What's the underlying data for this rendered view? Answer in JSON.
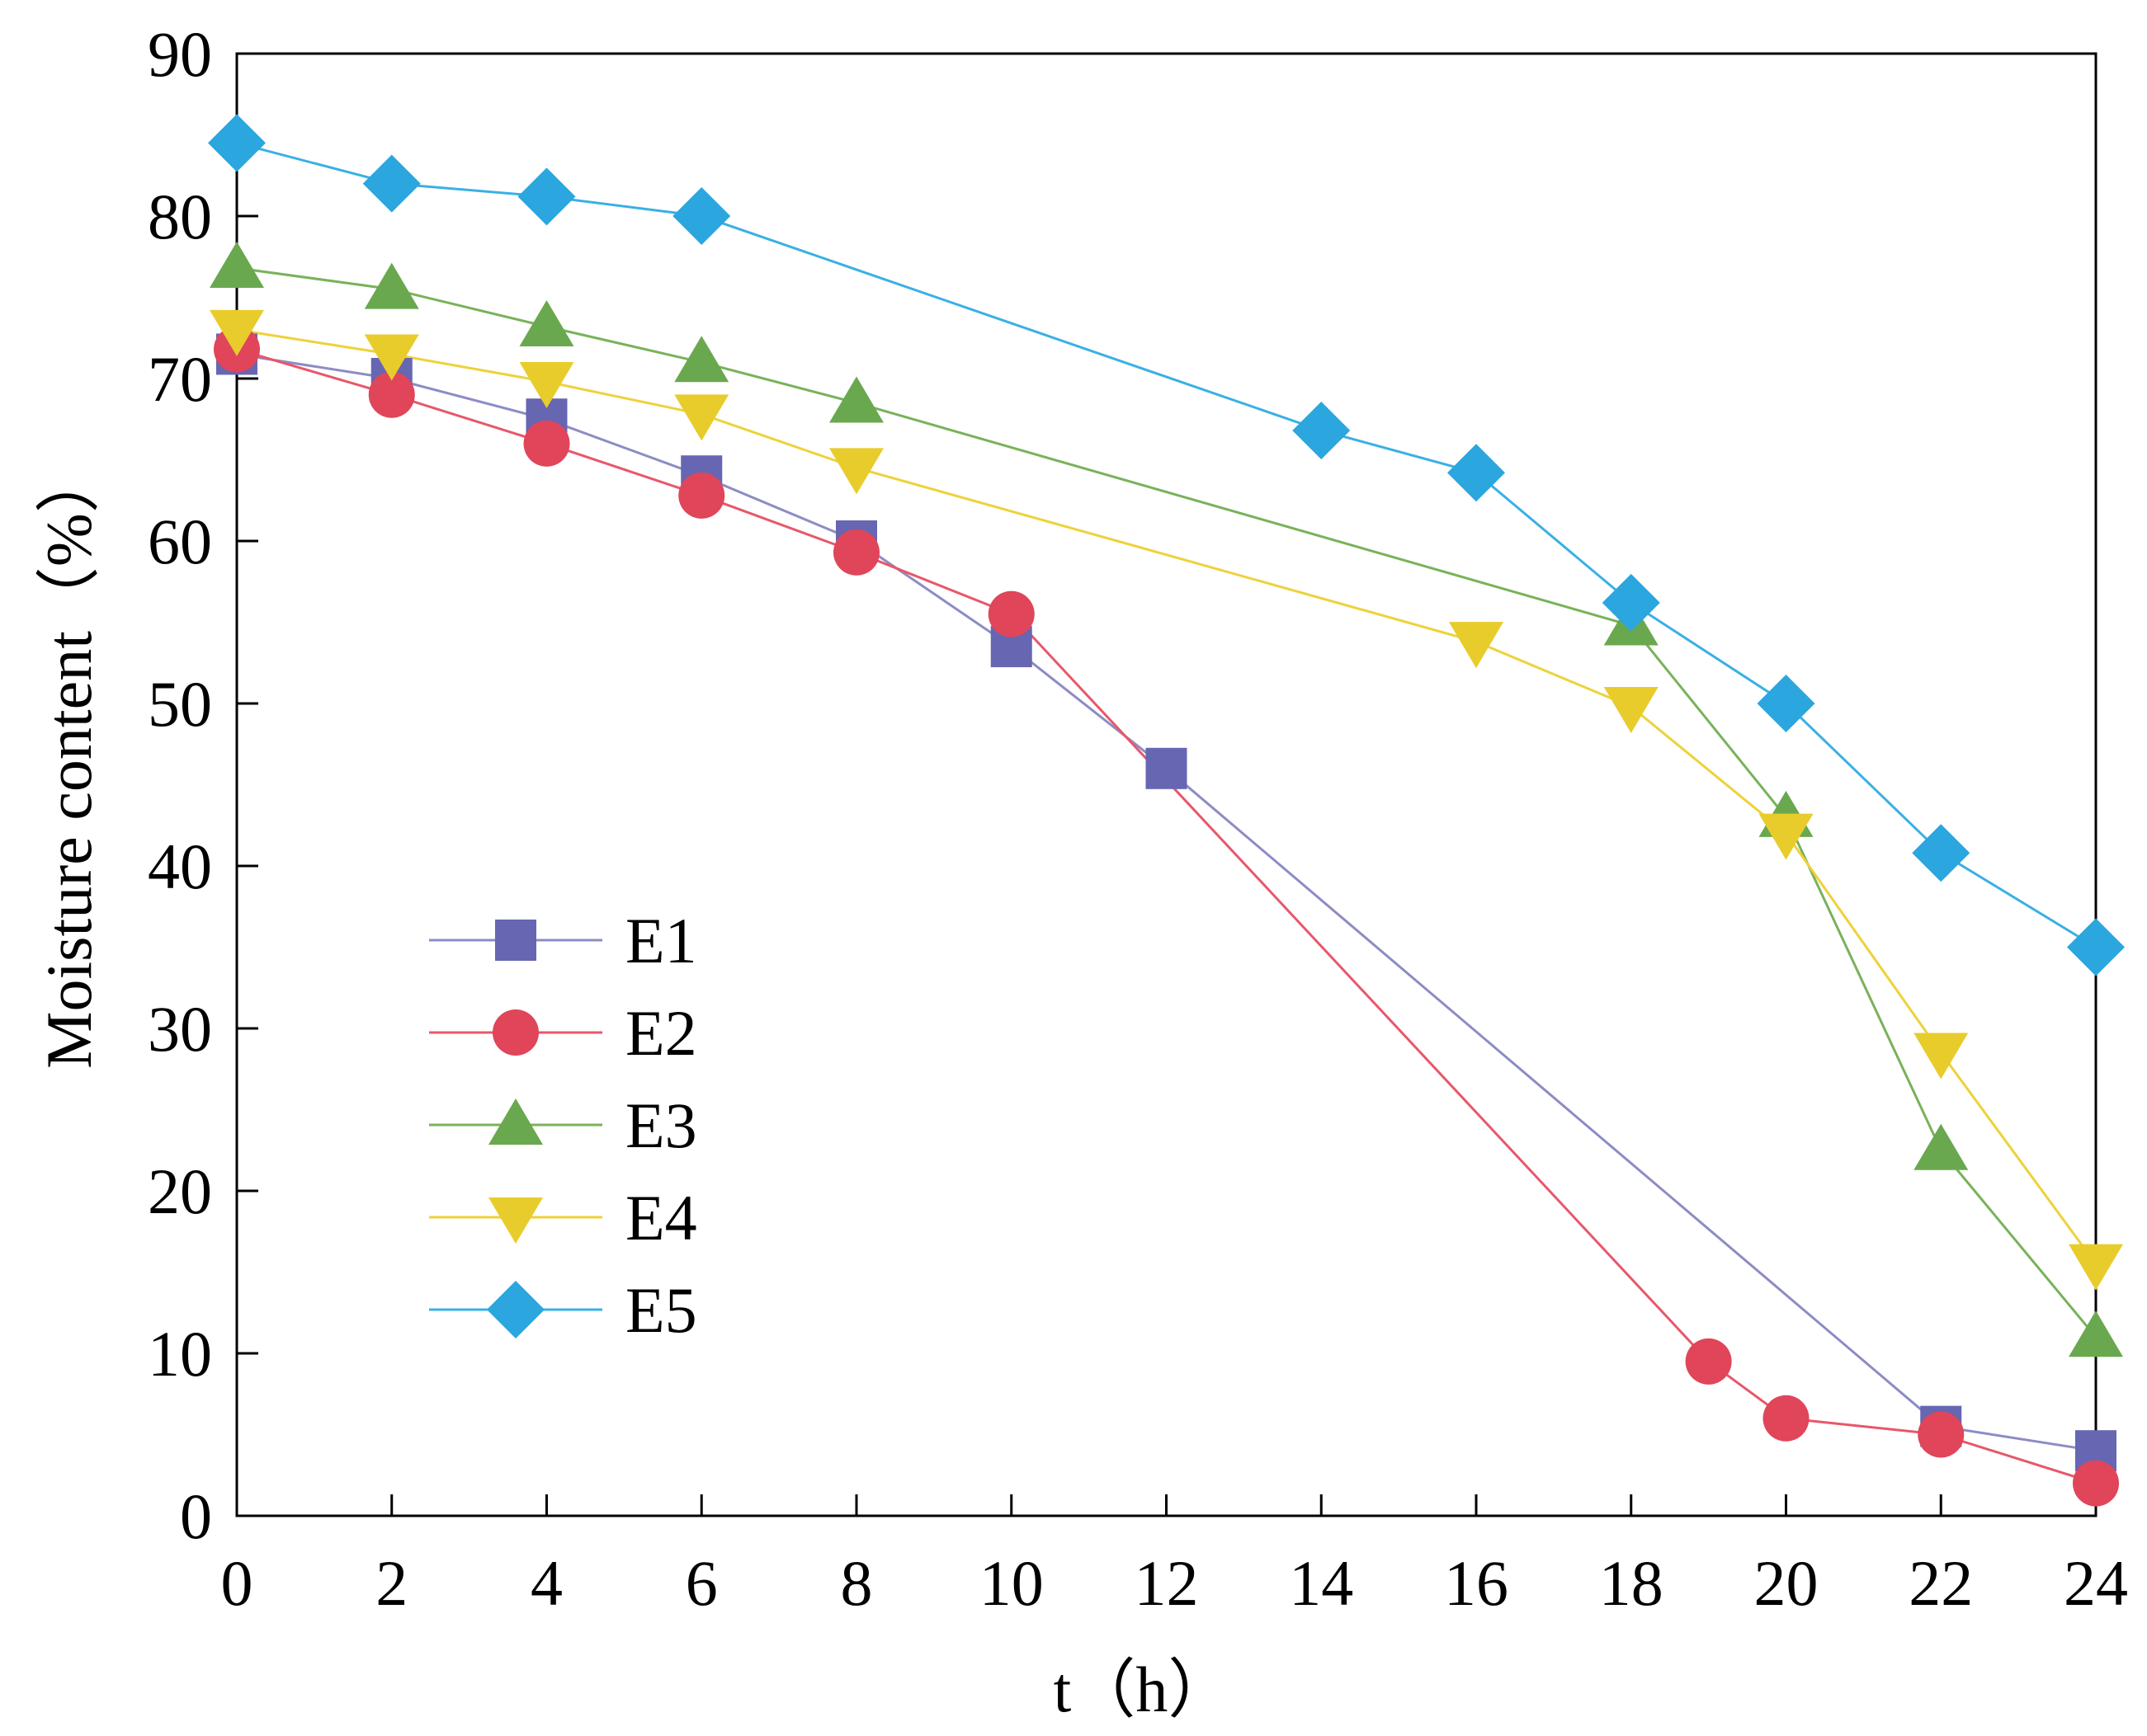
{
  "chart_data": {
    "type": "line",
    "title": "",
    "xlabel": "t（h）",
    "ylabel": "Moisture content（%）",
    "xlim": [
      0,
      24
    ],
    "ylim": [
      0,
      90
    ],
    "xticks": [
      0,
      2,
      4,
      6,
      8,
      10,
      12,
      14,
      16,
      18,
      20,
      22,
      24
    ],
    "yticks": [
      0,
      10,
      20,
      30,
      40,
      50,
      60,
      70,
      80,
      90
    ],
    "grid": false,
    "legend_position": "middle-left",
    "series": [
      {
        "name": "E1",
        "marker": "square",
        "color": "#6666B2",
        "line_color": "#8C8CC4",
        "x": [
          0,
          2,
          4,
          6,
          8,
          10,
          12,
          22,
          24
        ],
        "y": [
          71.5,
          70.0,
          67.5,
          64.0,
          60.0,
          53.5,
          46.0,
          5.5,
          4.0
        ]
      },
      {
        "name": "E2",
        "marker": "circle",
        "color": "#E0455A",
        "line_color": "#E8576A",
        "x": [
          0,
          2,
          4,
          6,
          8,
          10,
          19,
          20,
          22,
          24
        ],
        "y": [
          71.8,
          69.0,
          66.0,
          62.8,
          59.3,
          55.5,
          9.5,
          6.0,
          5.0,
          2.0
        ]
      },
      {
        "name": "E3",
        "marker": "triangle-up",
        "color": "#6AA84F",
        "line_color": "#78B25A",
        "x": [
          0,
          2,
          4,
          6,
          8,
          18,
          20,
          22,
          24
        ],
        "y": [
          76.8,
          75.5,
          73.2,
          71.0,
          68.5,
          54.8,
          43.0,
          22.5,
          11.0
        ]
      },
      {
        "name": "E4",
        "marker": "triangle-down",
        "color": "#E8CC2C",
        "line_color": "#EDD23A",
        "x": [
          0,
          2,
          4,
          6,
          8,
          16,
          18,
          20,
          22,
          24
        ],
        "y": [
          73.0,
          71.5,
          69.8,
          67.8,
          64.5,
          53.8,
          49.8,
          42.0,
          28.5,
          15.5
        ]
      },
      {
        "name": "E5",
        "marker": "diamond",
        "color": "#2BA6DE",
        "line_color": "#3AB0E4",
        "x": [
          0,
          2,
          4,
          6,
          14,
          16,
          18,
          20,
          22,
          24
        ],
        "y": [
          84.5,
          82.0,
          81.2,
          80.0,
          66.8,
          64.2,
          56.2,
          50.0,
          40.8,
          35.0
        ]
      }
    ]
  }
}
